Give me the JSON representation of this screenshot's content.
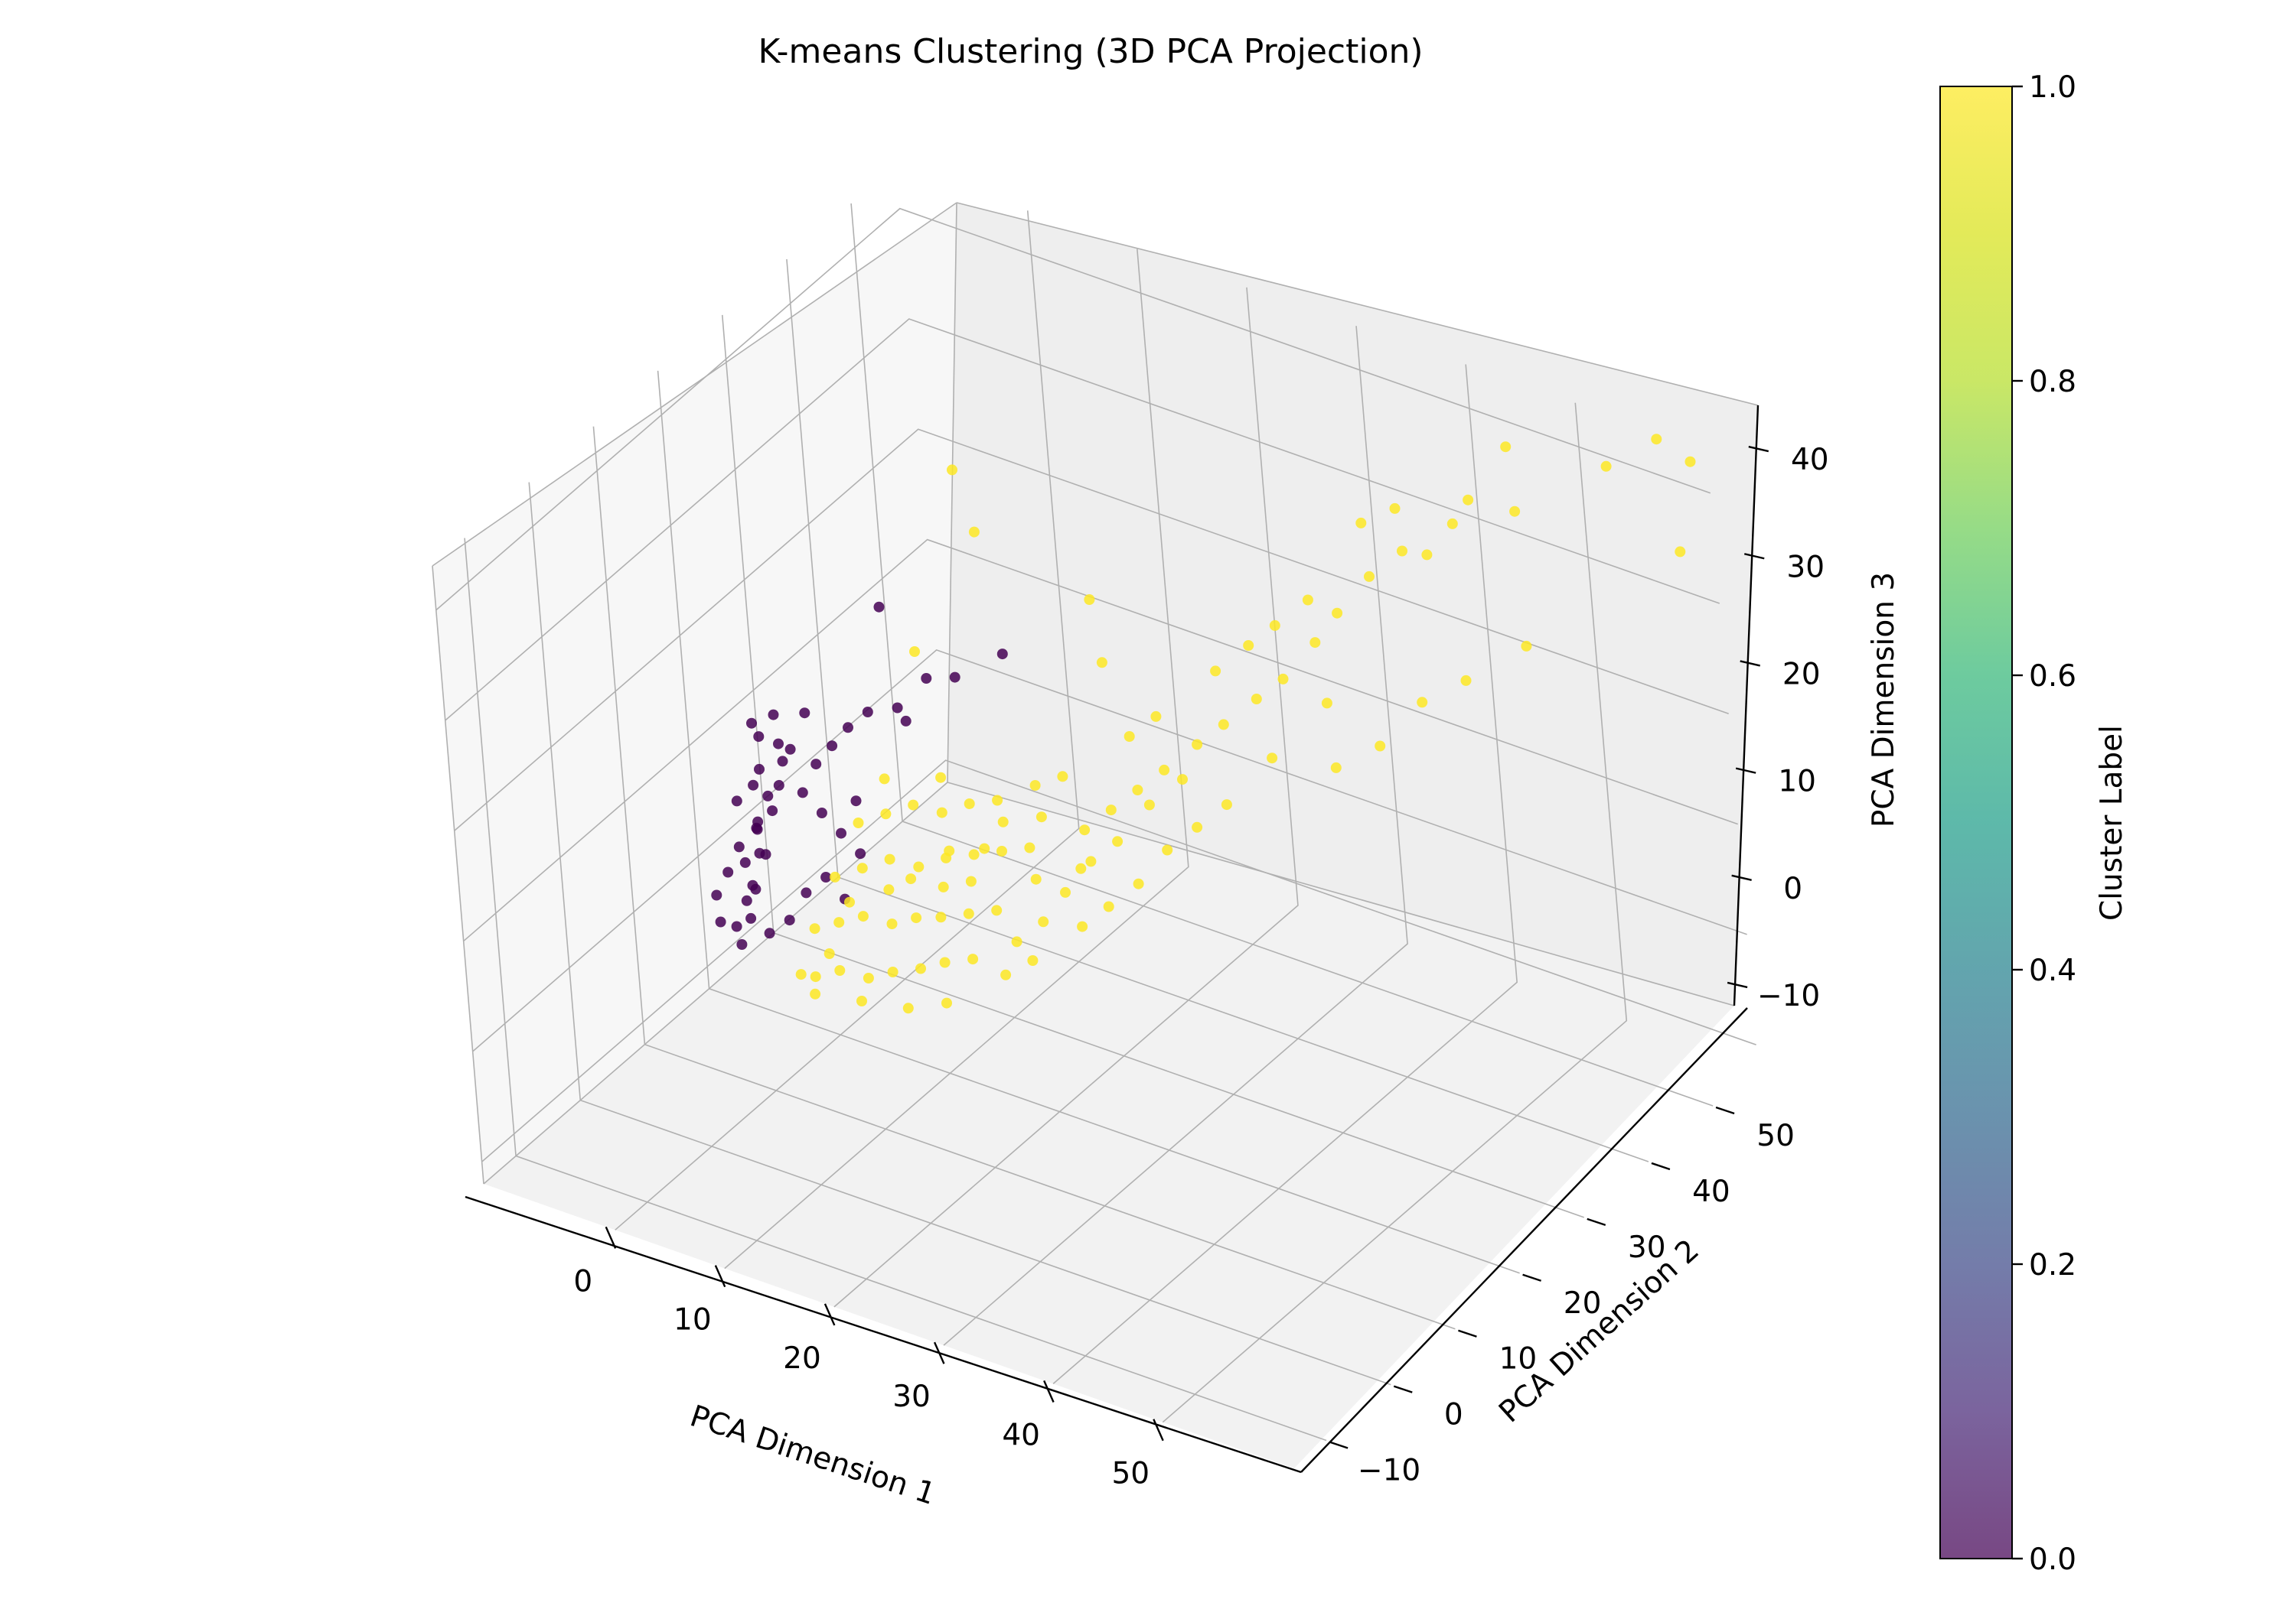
{
  "chart_data": {
    "type": "scatter",
    "title": "K-means Clustering (3D PCA Projection)",
    "xlabel": "PCA Dimension 1",
    "ylabel": "PCA Dimension 2",
    "zlabel": "PCA Dimension 3",
    "xlim": [
      -12,
      62
    ],
    "ylim": [
      -15,
      57
    ],
    "zlim": [
      -12,
      44
    ],
    "grid": true,
    "x_ticks": [
      0,
      10,
      20,
      30,
      40,
      50
    ],
    "y_ticks": [
      -10,
      0,
      10,
      20,
      30,
      40,
      50
    ],
    "z_ticks": [
      -10,
      0,
      10,
      20,
      30,
      40
    ],
    "x_tick_labels": [
      "0",
      "10",
      "20",
      "30",
      "40",
      "50"
    ],
    "y_tick_labels": [
      "−10",
      "0",
      "10",
      "20",
      "30",
      "40",
      "50"
    ],
    "z_tick_labels": [
      "−10",
      "0",
      "10",
      "20",
      "30",
      "40"
    ],
    "colorbar": {
      "label": "Cluster Label",
      "ticks": [
        0.0,
        0.2,
        0.4,
        0.6,
        0.8,
        1.0
      ],
      "tick_labels": [
        "0.0",
        "0.2",
        "0.4",
        "0.6",
        "0.8",
        "1.0"
      ],
      "colormap": "viridis"
    },
    "series": [
      {
        "cluster": 0,
        "color": "#440154",
        "points": [
          [
            -5.2,
            14.8,
            -3.0
          ],
          [
            -6.0,
            15.5,
            -2.0
          ],
          [
            -4.8,
            15.8,
            -1.0
          ],
          [
            -5.5,
            16.5,
            0.0
          ],
          [
            -4.9,
            17.0,
            1.0
          ],
          [
            -4.5,
            16.0,
            2.0
          ],
          [
            -5.8,
            17.2,
            3.0
          ],
          [
            -4.2,
            17.8,
            4.0
          ],
          [
            -3.8,
            16.3,
            5.0
          ],
          [
            -5.0,
            18.0,
            6.0
          ],
          [
            -4.5,
            17.5,
            7.0
          ],
          [
            -3.5,
            18.2,
            8.0
          ],
          [
            -4.0,
            18.5,
            9.0
          ],
          [
            -3.2,
            19.0,
            10.0
          ],
          [
            -4.8,
            18.8,
            11.0
          ],
          [
            -3.0,
            19.5,
            12.0
          ],
          [
            -2.5,
            20.0,
            13.0
          ],
          [
            -1.5,
            22.0,
            11.0
          ],
          [
            -0.5,
            23.0,
            12.5
          ],
          [
            0.5,
            24.0,
            14.0
          ],
          [
            1.5,
            25.5,
            15.0
          ],
          [
            -6.5,
            14.0,
            -1.0
          ],
          [
            -7.0,
            14.5,
            1.0
          ],
          [
            -6.2,
            15.2,
            3.0
          ],
          [
            -5.6,
            16.2,
            5.0
          ],
          [
            -4.4,
            17.2,
            6.5
          ],
          [
            -2.0,
            20.5,
            9.0
          ],
          [
            -1.0,
            21.5,
            7.0
          ],
          [
            0.0,
            22.5,
            5.0
          ],
          [
            1.0,
            23.5,
            3.0
          ],
          [
            -3.8,
            16.8,
            -2.5
          ],
          [
            -2.6,
            18.0,
            -1.5
          ],
          [
            -1.8,
            19.5,
            0.5
          ],
          [
            -5.2,
            15.8,
            9.5
          ],
          [
            -4.0,
            16.5,
            11.0
          ],
          [
            -2.8,
            18.8,
            14.0
          ],
          [
            -3.3,
            16.8,
            15.5
          ],
          [
            -1.2,
            20.5,
            16.5
          ],
          [
            -0.8,
            21.0,
            1.5
          ],
          [
            0.3,
            21.8,
            -0.5
          ],
          [
            1.2,
            23.2,
            8.0
          ],
          [
            -2.2,
            17.5,
            17.5
          ],
          [
            -3.6,
            16.4,
            16.8
          ],
          [
            6.0,
            24.0,
            16.5
          ],
          [
            9.0,
            27.0,
            20.0
          ],
          [
            5.0,
            23.0,
            27.0
          ],
          [
            13.0,
            28.0,
            23.0
          ],
          [
            4.0,
            26.0,
            16.0
          ],
          [
            5.0,
            29.0,
            17.5
          ]
        ]
      },
      {
        "cluster": 1,
        "color": "#fde725",
        "points": [
          [
            0.0,
            15.0,
            -4.0
          ],
          [
            2.0,
            14.0,
            -3.0
          ],
          [
            4.0,
            14.5,
            -2.0
          ],
          [
            6.0,
            15.5,
            -2.5
          ],
          [
            8.0,
            16.0,
            -1.5
          ],
          [
            10.0,
            17.0,
            -1.0
          ],
          [
            12.0,
            17.5,
            0.0
          ],
          [
            14.0,
            18.5,
            0.5
          ],
          [
            1.0,
            16.0,
            0.0
          ],
          [
            3.0,
            16.5,
            1.0
          ],
          [
            5.0,
            17.0,
            2.0
          ],
          [
            7.0,
            18.0,
            1.5
          ],
          [
            9.0,
            18.5,
            2.5
          ],
          [
            11.0,
            19.0,
            3.0
          ],
          [
            13.0,
            20.0,
            3.5
          ],
          [
            15.0,
            21.0,
            4.0
          ],
          [
            2.0,
            18.0,
            4.0
          ],
          [
            4.0,
            19.0,
            5.0
          ],
          [
            6.0,
            20.0,
            6.0
          ],
          [
            8.0,
            21.0,
            5.5
          ],
          [
            10.0,
            22.0,
            6.5
          ],
          [
            12.0,
            23.0,
            7.0
          ],
          [
            14.0,
            24.0,
            7.5
          ],
          [
            16.0,
            25.0,
            8.0
          ],
          [
            3.0,
            20.5,
            8.0
          ],
          [
            5.0,
            21.5,
            9.0
          ],
          [
            7.0,
            22.5,
            10.0
          ],
          [
            9.0,
            23.5,
            9.5
          ],
          [
            11.0,
            24.5,
            10.5
          ],
          [
            13.0,
            25.5,
            11.0
          ],
          [
            17.0,
            24.0,
            6.0
          ],
          [
            18.0,
            23.0,
            3.0
          ],
          [
            16.0,
            22.0,
            1.0
          ],
          [
            19.0,
            25.0,
            5.0
          ],
          [
            20.0,
            26.0,
            7.0
          ],
          [
            1.5,
            14.5,
            -5.0
          ],
          [
            5.5,
            15.0,
            -4.5
          ],
          [
            9.5,
            15.5,
            -4.0
          ],
          [
            12.5,
            16.5,
            -3.0
          ],
          [
            4.5,
            22.5,
            11.5
          ],
          [
            8.5,
            24.5,
            12.0
          ],
          [
            20.0,
            27.0,
            10.0
          ],
          [
            22.0,
            28.0,
            12.0
          ],
          [
            24.0,
            29.0,
            14.0
          ],
          [
            26.0,
            30.0,
            16.0
          ],
          [
            21.0,
            26.0,
            8.0
          ],
          [
            23.0,
            27.0,
            10.0
          ],
          [
            25.0,
            29.0,
            13.0
          ],
          [
            27.0,
            31.0,
            15.0
          ],
          [
            28.0,
            32.0,
            18.0
          ],
          [
            30.0,
            33.0,
            20.0
          ],
          [
            32.0,
            35.0,
            22.0
          ],
          [
            34.0,
            36.0,
            24.0
          ],
          [
            36.0,
            38.0,
            27.0
          ],
          [
            29.0,
            34.0,
            24.0
          ],
          [
            31.0,
            36.0,
            26.0
          ],
          [
            33.0,
            37.0,
            28.0
          ],
          [
            35.0,
            39.0,
            30.0
          ],
          [
            37.0,
            40.0,
            29.0
          ],
          [
            39.0,
            42.0,
            32.0
          ],
          [
            41.0,
            44.0,
            34.0
          ],
          [
            38.0,
            43.0,
            36.0
          ],
          [
            40.0,
            45.0,
            37.0
          ],
          [
            42.0,
            46.0,
            33.0
          ],
          [
            18.0,
            24.0,
            12.0
          ],
          [
            19.0,
            26.0,
            15.0
          ],
          [
            17.0,
            25.0,
            14.0
          ],
          [
            22.0,
            26.5,
            4.0
          ],
          [
            24.0,
            28.0,
            6.0
          ],
          [
            26.0,
            29.5,
            9.0
          ],
          [
            28.0,
            31.0,
            11.0
          ],
          [
            30.0,
            32.5,
            13.0
          ],
          [
            20.0,
            25.5,
            2.0
          ],
          [
            23.0,
            30.0,
            18.0
          ],
          [
            25.0,
            31.0,
            20.0
          ],
          [
            16.0,
            20.0,
            -1.0
          ],
          [
            18.0,
            21.0,
            0.5
          ],
          [
            14.0,
            21.5,
            9.0
          ],
          [
            15.0,
            23.0,
            11.0
          ],
          [
            11.0,
            21.0,
            8.0
          ],
          [
            6.0,
            19.5,
            3.5
          ],
          [
            7.5,
            20.5,
            4.5
          ],
          [
            3.5,
            17.5,
            2.5
          ],
          [
            10.5,
            20.5,
            4.8
          ],
          [
            12.5,
            21.5,
            5.5
          ],
          [
            2.5,
            15.5,
            -1.5
          ],
          [
            21.0,
            30.0,
            24.0
          ],
          [
            19.0,
            32.0,
            28.0
          ],
          [
            44.0,
            47.0,
            36.0
          ],
          [
            45.0,
            48.0,
            38.0
          ],
          [
            48.0,
            50.0,
            37.0
          ],
          [
            47.0,
            51.0,
            42.0
          ],
          [
            55.0,
            53.0,
            42.0
          ],
          [
            58.0,
            56.0,
            44.0
          ],
          [
            60.0,
            55.0,
            35.0
          ],
          [
            61.0,
            56.0,
            43.0
          ],
          [
            40.0,
            40.0,
            18.0
          ],
          [
            43.0,
            42.0,
            22.0
          ],
          [
            37.0,
            38.0,
            16.0
          ],
          [
            46.0,
            44.0,
            24.0
          ],
          [
            50.0,
            47.0,
            27.0
          ],
          [
            36.0,
            39.0,
            21.0
          ],
          [
            33.0,
            35.0,
            17.0
          ],
          [
            11.0,
            26.0,
            40.0
          ],
          [
            8.0,
            23.0,
            24.0
          ],
          [
            10.0,
            30.0,
            32.0
          ]
        ]
      }
    ]
  }
}
